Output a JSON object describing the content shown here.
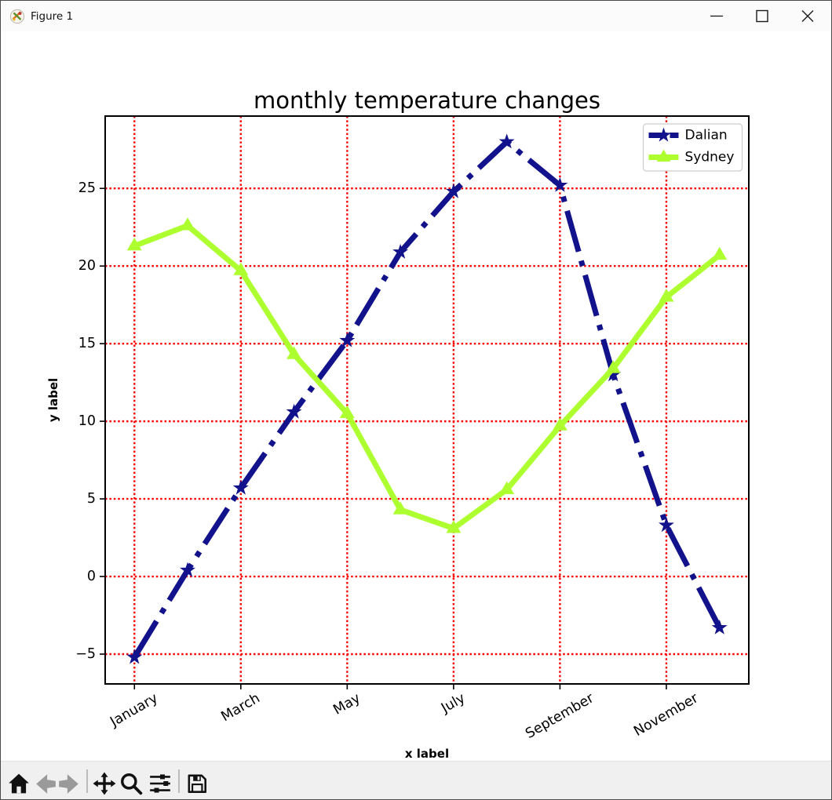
{
  "window": {
    "title": "Figure 1",
    "controls": [
      "minimize",
      "maximize",
      "close"
    ]
  },
  "chart_data": {
    "type": "line",
    "title": "monthly temperature changes",
    "xlabel": "x label",
    "ylabel": "y label",
    "x": [
      1,
      2,
      3,
      4,
      5,
      6,
      7,
      8,
      9,
      10,
      11,
      12
    ],
    "series": [
      {
        "name": "Dalian",
        "color": "#12128c",
        "linestyle": "dashdot",
        "marker": "star",
        "values": [
          -5.2,
          0.4,
          5.7,
          10.6,
          15.2,
          20.9,
          24.8,
          28.0,
          25.2,
          13.0,
          3.3,
          -3.3
        ]
      },
      {
        "name": "Sydney",
        "color": "#adff2f",
        "linestyle": "solid",
        "marker": "triangle-up",
        "values": [
          21.3,
          22.6,
          19.7,
          14.3,
          10.5,
          4.3,
          3.1,
          5.6,
          9.7,
          13.4,
          18.0,
          20.7
        ]
      }
    ],
    "x_ticks": {
      "positions": [
        1,
        3,
        5,
        7,
        9,
        11
      ],
      "labels": [
        "January",
        "March",
        "May",
        "July",
        "September",
        "November"
      ],
      "rotation": 30
    },
    "y_ticks": {
      "values": [
        -5,
        0,
        5,
        10,
        15,
        20,
        25
      ],
      "labels": [
        "−5",
        "0",
        "5",
        "10",
        "15",
        "20",
        "25"
      ]
    },
    "xlim": [
      0.45,
      12.55
    ],
    "ylim": [
      -6.92,
      29.66
    ],
    "grid": {
      "color": "#ff0000",
      "linestyle": "dotted"
    },
    "legend": {
      "position": "upper right"
    }
  },
  "toolbar": {
    "buttons": [
      "home",
      "back",
      "forward",
      "pan",
      "zoom-to-rect",
      "configure-subplots",
      "save"
    ]
  }
}
